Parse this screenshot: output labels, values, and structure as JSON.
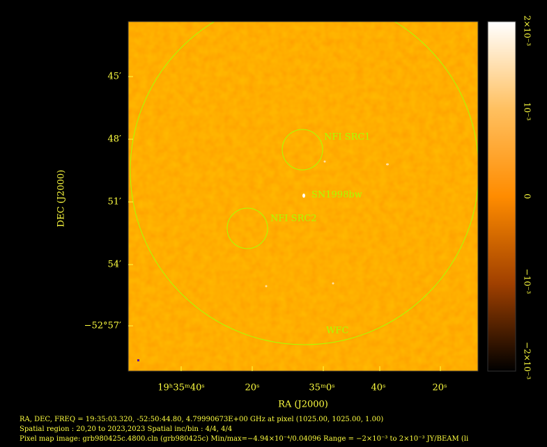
{
  "axes": {
    "x_label": "RA (J2000)",
    "y_label": "DEC (J2000)",
    "x_ticks": [
      "19ʰ35ᵐ40ˢ",
      "20ˢ",
      "35ᵐ0ˢ",
      "40ˢ",
      "20ˢ"
    ],
    "y_ticks": [
      "45′",
      "48′",
      "51′",
      "54′",
      "−52°57′"
    ]
  },
  "colorbar": {
    "ticks": [
      "2×10⁻³",
      "10⁻³",
      "0",
      "−10⁻³",
      "−2×10⁻³"
    ]
  },
  "annotations": [
    "NFI SRC1",
    "SN1998bw",
    "NFI SRC2",
    "WFC"
  ],
  "footer": [
    "RA, DEC, FREQ = 19:35:03.320, -52:50:44.80, 4.79990673E+00 GHz at pixel (1025.00, 1025.00, 1.00)",
    "Spatial region : 20,20 to 2023,2023 Spatial inc/bin : 4/4, 4/4",
    "Pixel map image: grb980425c.4800.cln (grb980425c)  Min/max=−4.94×10⁻⁴/0.04096  Range = −2×10⁻³ to 2×10⁻³ JY/BEAM (li"
  ]
}
